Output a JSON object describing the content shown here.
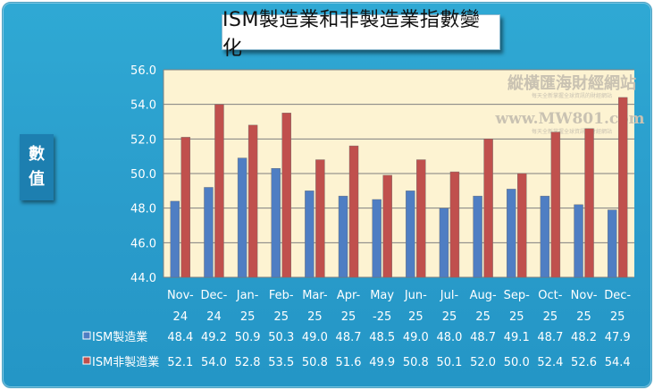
{
  "chart_data": {
    "type": "bar",
    "title": "ISM製造業和非製造業指數變化",
    "ylabel": "數值",
    "ylim": [
      44.0,
      56.0
    ],
    "yticks": [
      "44.0",
      "46.0",
      "48.0",
      "50.0",
      "52.0",
      "54.0",
      "56.0"
    ],
    "categories": [
      [
        "Nov-",
        "24"
      ],
      [
        "Dec-",
        "24"
      ],
      [
        "Jan-",
        "25"
      ],
      [
        "Feb-",
        "25"
      ],
      [
        "Mar-",
        "25"
      ],
      [
        "Apr-",
        "25"
      ],
      [
        "May",
        "-25"
      ],
      [
        "Jun-",
        "25"
      ],
      [
        "Jul-",
        "25"
      ],
      [
        "Aug-",
        "25"
      ],
      [
        "Sep-",
        "25"
      ],
      [
        "Oct-",
        "25"
      ],
      [
        "Nov-",
        "25"
      ],
      [
        "Dec-",
        "25"
      ]
    ],
    "series": [
      {
        "name": "ISM製造業",
        "color": "#4f7ec3",
        "values": [
          48.4,
          49.2,
          50.9,
          50.3,
          49.0,
          48.7,
          48.5,
          49.0,
          48.0,
          48.7,
          49.1,
          48.7,
          48.2,
          47.9
        ],
        "labels": [
          "48.4",
          "49.2",
          "50.9",
          "50.3",
          "49.0",
          "48.7",
          "48.5",
          "49.0",
          "48.0",
          "48.7",
          "49.1",
          "48.7",
          "48.2",
          "47.9"
        ]
      },
      {
        "name": "ISM非製造業",
        "color": "#c0504d",
        "values": [
          52.1,
          54.0,
          52.8,
          53.5,
          50.8,
          51.6,
          49.9,
          50.8,
          50.1,
          52.0,
          50.0,
          52.4,
          52.6,
          54.4
        ],
        "labels": [
          "52.1",
          "54.0",
          "52.8",
          "53.5",
          "50.8",
          "51.6",
          "49.9",
          "50.8",
          "50.1",
          "52.0",
          "50.0",
          "52.4",
          "52.6",
          "54.4"
        ]
      }
    ],
    "grid": true,
    "legend": "data-table-bottom",
    "plot_background": "#fdf3d2"
  },
  "watermark": {
    "line1": "縱橫匯海財經網站",
    "line2": "每天全新掌握全球資訊的財經網站",
    "line3": "www.MW801.com",
    "line4": "每天全新掌握全球資訊的財經網站"
  }
}
